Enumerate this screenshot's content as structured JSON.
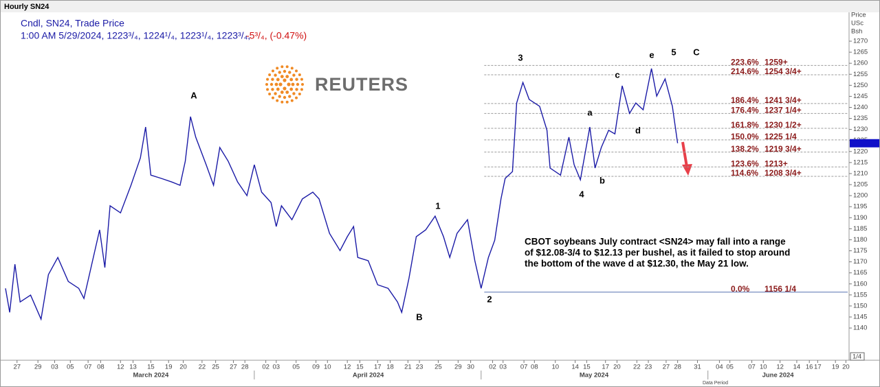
{
  "header": {
    "title": "Hourly SN24",
    "study": "Cndl, SN24, Trade Price",
    "quote": "1:00 AM 5/29/2024, 1223³/₄, 1224¹/₄, 1223¹/₄, 1223³/₄,",
    "change": "-5³/₄, (-0.47%)",
    "axis_title": [
      "Price",
      "USc",
      "Bsh"
    ],
    "logo": "REUTERS",
    "pager": "1/4",
    "footer": "Data Period"
  },
  "chart_data": {
    "type": "line",
    "color": "#1a1aa6",
    "x": [
      -1.1,
      -0.7,
      -0.2,
      0.3,
      1.3,
      2.3,
      3.0,
      3.9,
      4.9,
      5.9,
      6.4,
      7.0,
      7.9,
      8.4,
      8.9,
      9.9,
      10.9,
      11.8,
      12.3,
      12.8,
      13.8,
      14.8,
      15.6,
      16.1,
      16.6,
      17.1,
      18.1,
      18.8,
      19.4,
      20.2,
      21.1,
      22.0,
      22.7,
      23.4,
      24.3,
      24.8,
      25.3,
      26.3,
      27.3,
      28.3,
      28.9,
      29.9,
      30.9,
      31.6,
      32.2,
      32.6,
      33.6,
      34.5,
      35.5,
      36.4,
      36.8,
      37.5,
      38.2,
      39.1,
      40.0,
      40.8,
      41.4,
      42.1,
      43.1,
      43.8,
      44.4,
      45.1,
      45.7,
      46.3,
      46.7,
      47.4,
      47.8,
      48.4,
      49.0,
      50.0,
      50.7,
      51.0,
      52.0,
      52.8,
      53.3,
      53.9,
      54.8,
      55.3,
      55.9,
      56.6,
      57.2,
      57.9,
      58.6,
      59.2,
      59.9,
      60.7,
      61.2,
      62.0,
      62.7,
      63.2
    ],
    "values": [
      1158.0,
      1147.1,
      1168.9,
      1151.8,
      1154.9,
      1144.0,
      1164.2,
      1172.0,
      1161.1,
      1158.0,
      1153.4,
      1165.8,
      1184.5,
      1167.4,
      1195.4,
      1192.2,
      1204.7,
      1217.1,
      1231.1,
      1209.3,
      1207.8,
      1206.2,
      1204.7,
      1215.6,
      1235.8,
      1226.5,
      1214.0,
      1204.7,
      1221.8,
      1215.6,
      1206.2,
      1200.0,
      1214.0,
      1201.6,
      1196.9,
      1186.0,
      1195.4,
      1189.1,
      1198.5,
      1201.6,
      1198.5,
      1182.9,
      1175.1,
      1181.4,
      1186.0,
      1172.0,
      1170.5,
      1159.6,
      1158.0,
      1151.8,
      1147.1,
      1162.6,
      1181.4,
      1184.5,
      1190.7,
      1181.4,
      1172.0,
      1182.9,
      1189.1,
      1170.5,
      1158.0,
      1172.0,
      1179.8,
      1198.5,
      1207.8,
      1210.9,
      1242.0,
      1251.3,
      1243.6,
      1240.5,
      1229.6,
      1212.5,
      1209.3,
      1226.5,
      1214.0,
      1207.2,
      1231.1,
      1212.5,
      1221.8,
      1229.6,
      1228.0,
      1249.8,
      1237.3,
      1242.0,
      1238.9,
      1257.6,
      1245.1,
      1252.9,
      1240.5,
      1223.75
    ],
    "xlim": [
      -1.3,
      79.8
    ],
    "ylim": [
      1125.4,
      1284
    ],
    "yticks": [
      1140,
      1145,
      1150,
      1155,
      1160,
      1165,
      1170,
      1175,
      1180,
      1185,
      1190,
      1195,
      1200,
      1205,
      1210,
      1215,
      1220,
      1225,
      1230,
      1235,
      1240,
      1245,
      1250,
      1255,
      1260,
      1265,
      1270
    ],
    "xticks": [
      {
        "value": 0,
        "label": "27"
      },
      {
        "value": 2.0,
        "label": "29"
      },
      {
        "value": 3.6,
        "label": "03"
      },
      {
        "value": 5.1,
        "label": "05"
      },
      {
        "value": 6.8,
        "label": "07"
      },
      {
        "value": 8.0,
        "label": "08"
      },
      {
        "value": 9.9,
        "label": "12"
      },
      {
        "value": 11.1,
        "label": "13"
      },
      {
        "value": 12.8,
        "label": "15"
      },
      {
        "value": 14.5,
        "label": "19"
      },
      {
        "value": 15.9,
        "label": "20"
      },
      {
        "value": 17.7,
        "label": "22"
      },
      {
        "value": 19.0,
        "label": "25"
      },
      {
        "value": 20.7,
        "label": "27"
      },
      {
        "value": 21.8,
        "label": "28"
      },
      {
        "value": 23.8,
        "label": "02"
      },
      {
        "value": 24.8,
        "label": "03"
      },
      {
        "value": 26.7,
        "label": "05"
      },
      {
        "value": 28.6,
        "label": "09"
      },
      {
        "value": 29.7,
        "label": "10"
      },
      {
        "value": 31.6,
        "label": "12"
      },
      {
        "value": 32.8,
        "label": "15"
      },
      {
        "value": 34.5,
        "label": "17"
      },
      {
        "value": 35.7,
        "label": "18"
      },
      {
        "value": 37.4,
        "label": "21"
      },
      {
        "value": 38.5,
        "label": "23"
      },
      {
        "value": 40.3,
        "label": "25"
      },
      {
        "value": 42.2,
        "label": "29"
      },
      {
        "value": 43.4,
        "label": "30"
      },
      {
        "value": 45.5,
        "label": "02"
      },
      {
        "value": 46.5,
        "label": "03"
      },
      {
        "value": 48.5,
        "label": "07"
      },
      {
        "value": 49.5,
        "label": "08"
      },
      {
        "value": 51.5,
        "label": "10"
      },
      {
        "value": 53.4,
        "label": "14"
      },
      {
        "value": 54.5,
        "label": "15"
      },
      {
        "value": 56.3,
        "label": "17"
      },
      {
        "value": 57.4,
        "label": "20"
      },
      {
        "value": 59.3,
        "label": "22"
      },
      {
        "value": 60.4,
        "label": "23"
      },
      {
        "value": 62.1,
        "label": "27"
      },
      {
        "value": 63.2,
        "label": "28"
      },
      {
        "value": 65.1,
        "label": "31"
      },
      {
        "value": 67.2,
        "label": "04"
      },
      {
        "value": 68.2,
        "label": "05"
      },
      {
        "value": 70.3,
        "label": "07"
      },
      {
        "value": 71.4,
        "label": "10"
      },
      {
        "value": 73.0,
        "label": "12"
      },
      {
        "value": 74.6,
        "label": "14"
      },
      {
        "value": 75.8,
        "label": "16"
      },
      {
        "value": 76.6,
        "label": "17"
      },
      {
        "value": 78.3,
        "label": "19"
      },
      {
        "value": 79.3,
        "label": "20"
      }
    ],
    "months": [
      {
        "value": 12.8,
        "label": "March 2024"
      },
      {
        "value": 33.6,
        "label": "April 2024"
      },
      {
        "value": 55.2,
        "label": "May 2024"
      },
      {
        "value": 72.8,
        "label": "June 2024"
      }
    ],
    "month_breaks": [
      22.7,
      44.4,
      66.1
    ],
    "levels": [
      {
        "pct": "223.6%",
        "value": 1259,
        "label": "1259+"
      },
      {
        "pct": "214.6%",
        "value": 1254.75,
        "label": "1254 3/4+"
      },
      {
        "pct": "186.4%",
        "value": 1241.75,
        "label": "1241 3/4+"
      },
      {
        "pct": "176.4%",
        "value": 1237.25,
        "label": "1237 1/4+"
      },
      {
        "pct": "161.8%",
        "value": 1230.5,
        "label": "1230 1/2+"
      },
      {
        "pct": "150.0%",
        "value": 1225.25,
        "label": "1225 1/4"
      },
      {
        "pct": "138.2%",
        "value": 1219.75,
        "label": "1219 3/4+"
      },
      {
        "pct": "123.6%",
        "value": 1213,
        "label": "1213+"
      },
      {
        "pct": "114.6%",
        "value": 1208.75,
        "label": "1208 3/4+"
      },
      {
        "pct": "0.0%",
        "value": 1156.25,
        "label": "1156 1/4"
      }
    ],
    "levels_start": 44.7,
    "waves": [
      "A",
      "B",
      "1",
      "2",
      "3",
      "4",
      "5",
      "C",
      "a",
      "b",
      "c",
      "d",
      "e"
    ],
    "annotation": [
      "CBOT soybeans July contract <SN24> may fall into a range",
      "of $12.08-3/4 to $12.13 per bushel, as it failed to stop around",
      "the bottom of the wave d at $12.30, the May 21 low."
    ]
  }
}
